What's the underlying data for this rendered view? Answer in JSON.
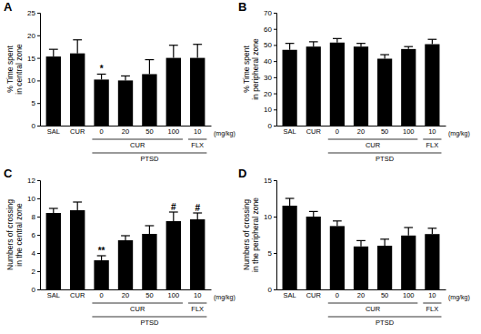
{
  "chart_data": [
    {
      "type": "bar",
      "title": "A",
      "ylabel": [
        "% Time spent",
        "in central zone"
      ],
      "categories": [
        "SAL",
        "CUR",
        "0",
        "20",
        "50",
        "100",
        "10"
      ],
      "values": [
        15.3,
        16.0,
        10.2,
        10.0,
        11.4,
        15.0,
        15.0
      ],
      "errors": [
        1.6,
        3.0,
        1.2,
        1.0,
        3.2,
        2.8,
        3.0
      ],
      "significance": [
        null,
        null,
        "*",
        null,
        null,
        null,
        null
      ],
      "groups": [
        {
          "label": "CUR",
          "from": 2,
          "to": 5
        },
        {
          "label": "FLX",
          "from": 6,
          "to": 6
        },
        {
          "label": "PTSD",
          "from": 2,
          "to": 6
        }
      ],
      "unit_label": "(mg/kg)",
      "color": "#000000",
      "ylim": [
        0,
        25
      ],
      "yticks": [
        0,
        5,
        10,
        15,
        20,
        25
      ]
    },
    {
      "type": "bar",
      "title": "B",
      "ylabel": [
        "% Time spent",
        "in peripheral zone"
      ],
      "categories": [
        "SAL",
        "CUR",
        "0",
        "20",
        "50",
        "100",
        "10"
      ],
      "values": [
        47.0,
        49.0,
        51.5,
        49.0,
        41.5,
        47.5,
        50.5
      ],
      "errors": [
        4.0,
        3.0,
        2.5,
        2.0,
        2.5,
        1.5,
        3.0
      ],
      "significance": [
        null,
        null,
        null,
        null,
        null,
        null,
        null
      ],
      "groups": [
        {
          "label": "CUR",
          "from": 2,
          "to": 5
        },
        {
          "label": "FLX",
          "from": 6,
          "to": 6
        },
        {
          "label": "PTSD",
          "from": 2,
          "to": 6
        }
      ],
      "unit_label": "(mg/kg)",
      "color": "#000000",
      "ylim": [
        0,
        70
      ],
      "yticks": [
        0,
        10,
        20,
        30,
        40,
        50,
        60,
        70
      ]
    },
    {
      "type": "bar",
      "title": "C",
      "ylabel": [
        "Numbers of crossing",
        "in the central zone"
      ],
      "categories": [
        "SAL",
        "CUR",
        "0",
        "20",
        "50",
        "100",
        "10"
      ],
      "values": [
        8.4,
        8.7,
        3.2,
        5.4,
        6.1,
        7.5,
        7.7
      ],
      "errors": [
        0.5,
        0.9,
        0.5,
        0.5,
        0.9,
        1.0,
        0.7
      ],
      "significance": [
        null,
        null,
        "**",
        null,
        null,
        "#",
        "#"
      ],
      "groups": [
        {
          "label": "CUR",
          "from": 2,
          "to": 5
        },
        {
          "label": "FLX",
          "from": 6,
          "to": 6
        },
        {
          "label": "PTSD",
          "from": 2,
          "to": 6
        }
      ],
      "unit_label": "(mg/kg)",
      "color": "#000000",
      "ylim": [
        0,
        12
      ],
      "yticks": [
        0,
        2,
        4,
        6,
        8,
        10,
        12
      ]
    },
    {
      "type": "bar",
      "title": "D",
      "ylabel": [
        "Numbers of crossing",
        "in the peripheral zone"
      ],
      "categories": [
        "SAL",
        "CUR",
        "0",
        "20",
        "50",
        "100",
        "10"
      ],
      "values": [
        11.5,
        10.0,
        8.7,
        5.9,
        6.0,
        7.4,
        7.6
      ],
      "errors": [
        1.0,
        0.7,
        0.7,
        0.8,
        0.9,
        1.1,
        0.8
      ],
      "significance": [
        null,
        null,
        null,
        null,
        null,
        null,
        null
      ],
      "groups": [
        {
          "label": "CUR",
          "from": 2,
          "to": 5
        },
        {
          "label": "FLX",
          "from": 6,
          "to": 6
        },
        {
          "label": "PTSD",
          "from": 2,
          "to": 6
        }
      ],
      "unit_label": "(mg/kg)",
      "color": "#000000",
      "ylim": [
        0,
        15
      ],
      "yticks": [
        0,
        5,
        10,
        15
      ]
    }
  ]
}
